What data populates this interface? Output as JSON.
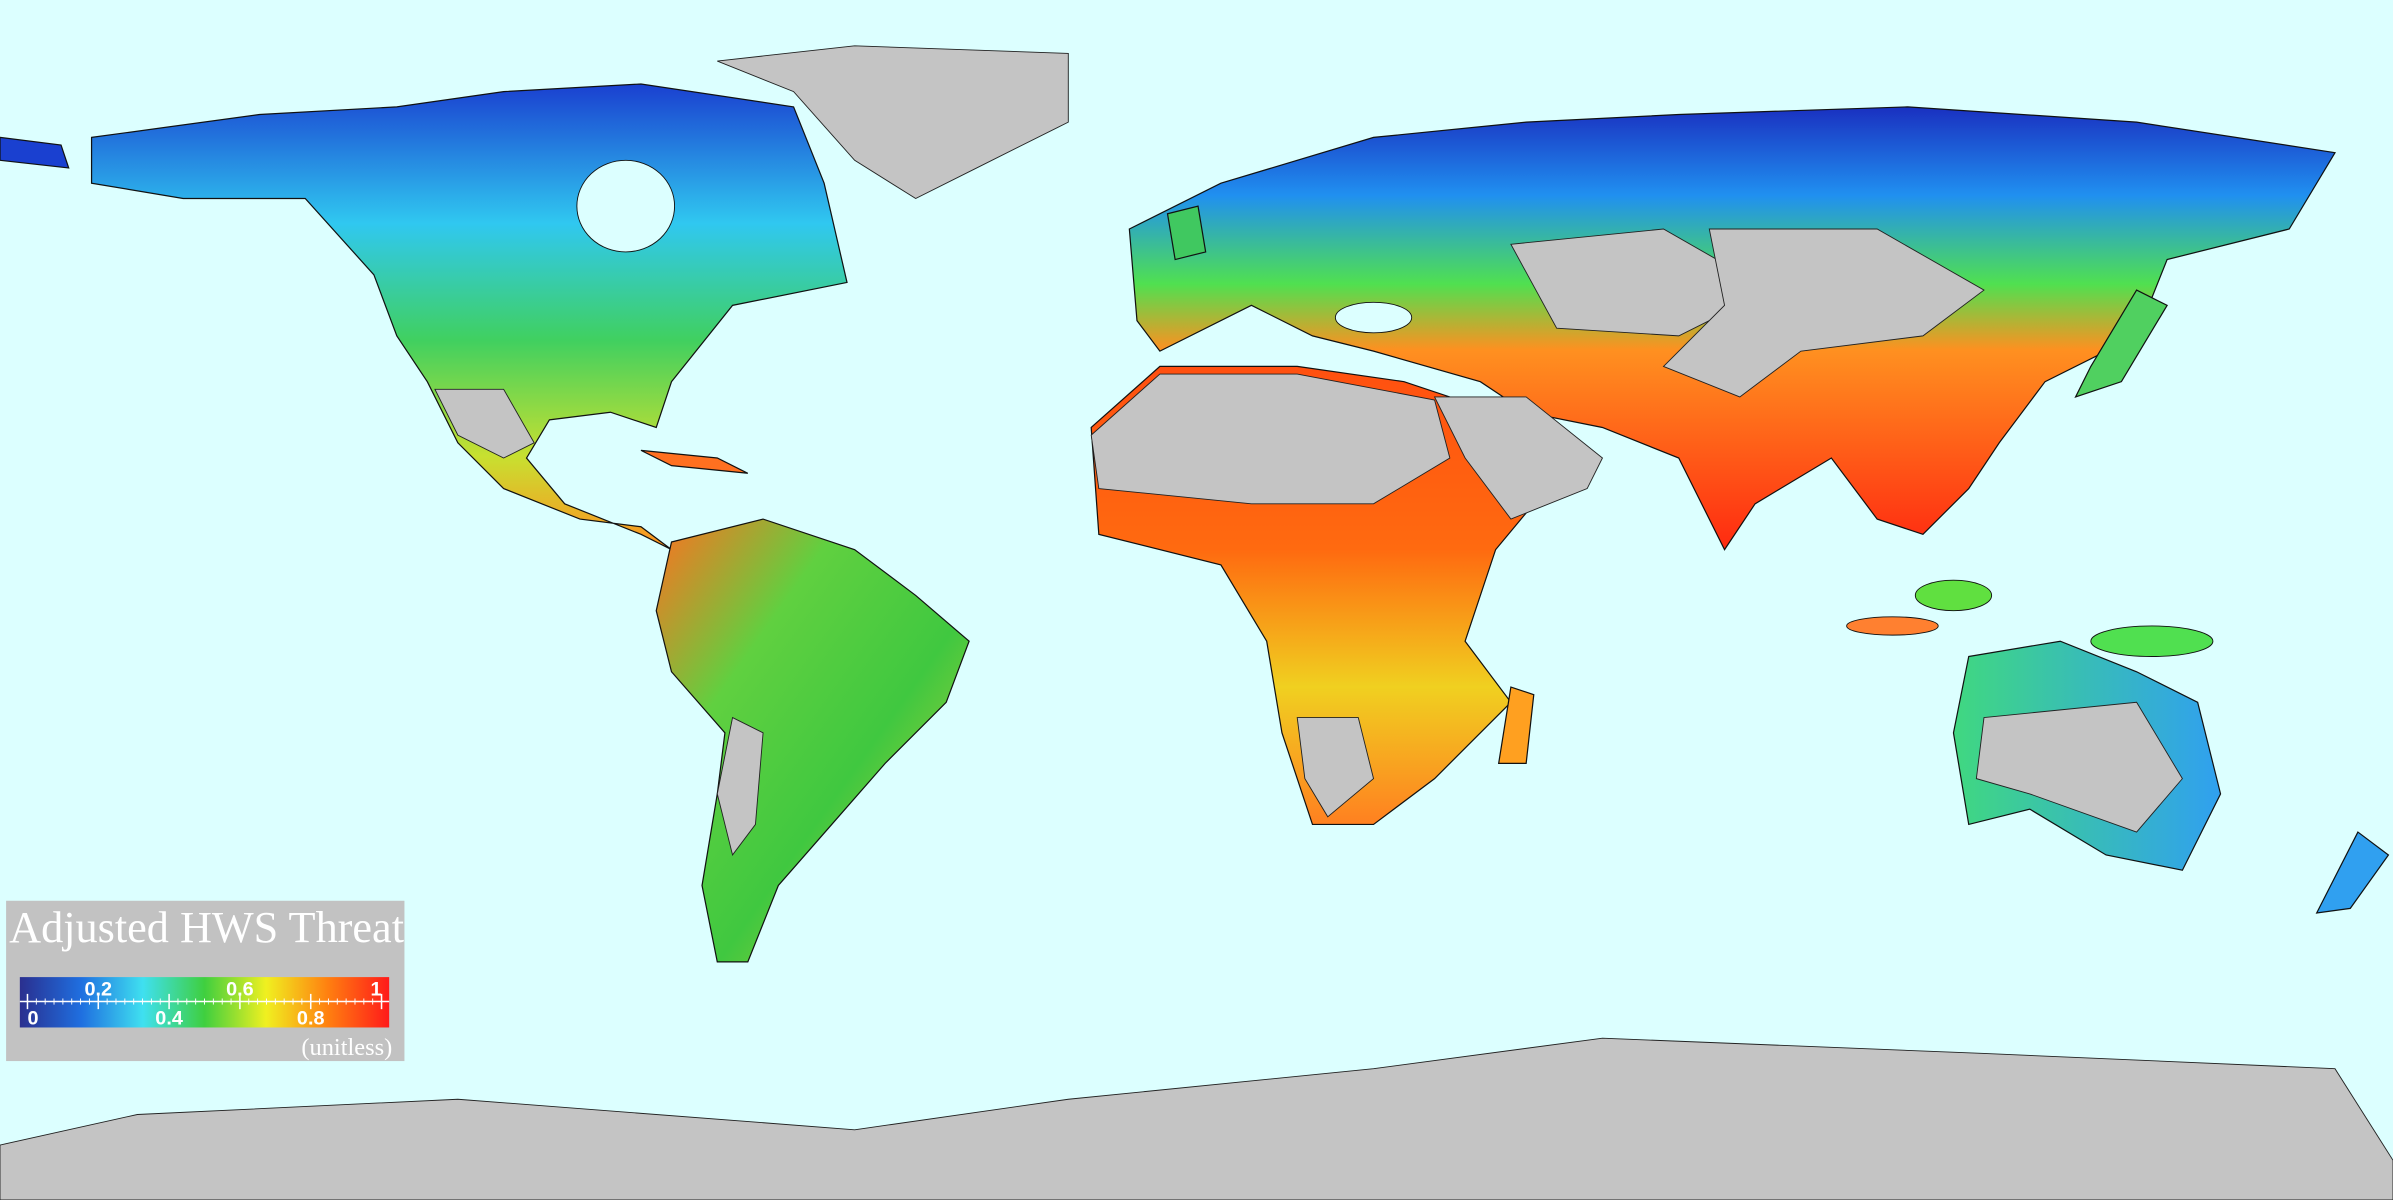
{
  "legend": {
    "title": "Adjusted HWS Threat",
    "range": [
      0,
      1
    ],
    "ticks": [
      0,
      0.2,
      0.4,
      0.6,
      0.8,
      1
    ],
    "unit_label": "(unitless)",
    "colors": [
      "#2a2f8f",
      "#1f6fe0",
      "#3fe0f0",
      "#3fcf3f",
      "#f0f020",
      "#ff8010",
      "#ff1a1a"
    ]
  }
}
